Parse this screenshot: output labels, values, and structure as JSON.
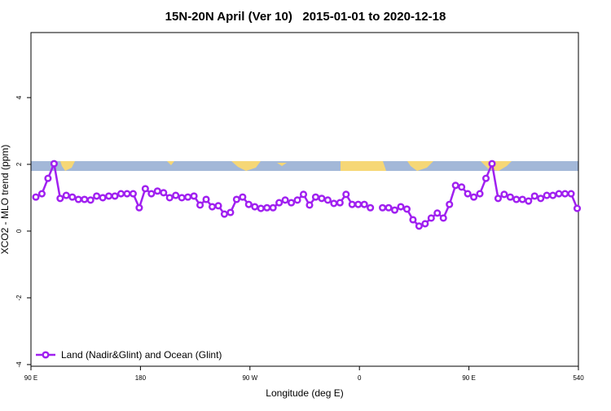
{
  "chart_data": {
    "type": "line",
    "title": "15N-20N April (Ver 10)   2015-01-01 to 2020-12-18",
    "xlabel": "Longitude (deg E)",
    "ylabel": "XCO2 - MLO trend (ppm)",
    "xlim": [
      90,
      540
    ],
    "xticks": [
      {
        "value": 90,
        "label": "90 E"
      },
      180,
      {
        "value": 270,
        "label": "90 W"
      },
      {
        "value": 360,
        "label": "0"
      },
      {
        "value": 450,
        "label": "90 E"
      },
      540
    ],
    "ylim": [
      -4.05,
      5.95
    ],
    "yticks": [
      -4,
      -2,
      0,
      2,
      4
    ],
    "legend": "bottom-left",
    "x": [
      94,
      99,
      104,
      109,
      114,
      119,
      124,
      129,
      134,
      139,
      144,
      149,
      154,
      159,
      164,
      169,
      174,
      179,
      184,
      189,
      194,
      199,
      204,
      209,
      214,
      219,
      224,
      229,
      234,
      239,
      244,
      249,
      254,
      259,
      264,
      269,
      274,
      279,
      284,
      289,
      294,
      299,
      304,
      309,
      314,
      319,
      324,
      329,
      334,
      339,
      344,
      349,
      354,
      359,
      364,
      369,
      374,
      379,
      384,
      389,
      394,
      399,
      404,
      409,
      414,
      419,
      424,
      429,
      434,
      439,
      444,
      449,
      454,
      459,
      464,
      469,
      474,
      479,
      484,
      489,
      494,
      499,
      504,
      509,
      514,
      519,
      524,
      529,
      534,
      539
    ],
    "series": [
      {
        "name": "Land (Nadir&Glint) and Ocean (Glint)",
        "color": "#a020f0",
        "values": [
          1.02,
          1.12,
          1.58,
          2.02,
          0.98,
          1.07,
          1.02,
          0.95,
          0.95,
          0.93,
          1.05,
          1.0,
          1.05,
          1.05,
          1.12,
          1.12,
          1.12,
          0.7,
          1.27,
          1.12,
          1.2,
          1.15,
          1.0,
          1.07,
          1.0,
          1.02,
          1.05,
          0.78,
          0.95,
          0.73,
          0.76,
          0.51,
          0.56,
          0.95,
          1.02,
          0.8,
          0.73,
          0.68,
          0.7,
          0.7,
          0.85,
          0.93,
          0.85,
          0.93,
          1.1,
          0.78,
          1.02,
          0.98,
          0.93,
          0.83,
          0.85,
          1.1,
          0.8,
          0.8,
          0.8,
          0.7,
          null,
          0.7,
          0.7,
          0.63,
          0.73,
          0.66,
          0.34,
          0.15,
          0.22,
          0.39,
          0.54,
          0.39,
          0.8,
          1.37,
          1.32,
          1.12,
          1.02,
          1.12,
          1.58,
          2.02,
          0.98,
          1.1,
          1.02,
          0.95,
          0.95,
          0.9,
          1.05,
          0.98,
          1.07,
          1.07,
          1.12,
          1.12,
          1.12,
          0.68
        ]
      }
    ]
  }
}
